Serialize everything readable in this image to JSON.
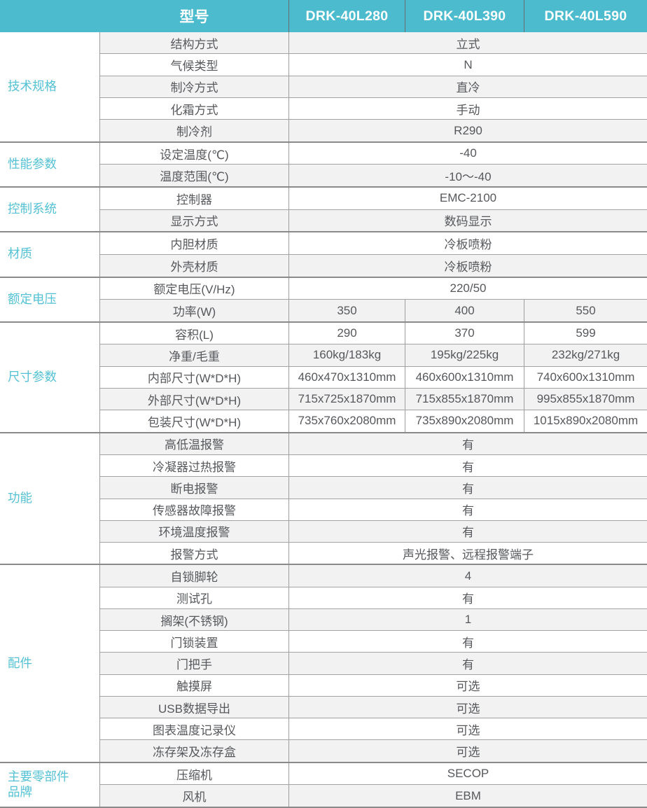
{
  "colors": {
    "header_bg": "#4cbbce",
    "header_text": "#ffffff",
    "category_text": "#55c1d4",
    "body_text": "#56585b",
    "stripe": "#f2f2f3",
    "row_line": "#a3a3a3",
    "section_line": "#8a8a8a",
    "col_line": "#9e9e9e",
    "header_divider": "#6a6e70"
  },
  "header": {
    "model_label": "型号",
    "models": [
      "DRK-40L280",
      "DRK-40L390",
      "DRK-40L590"
    ]
  },
  "sections": [
    {
      "category": "技术规格",
      "rows": [
        {
          "param": "结构方式",
          "value": "立式"
        },
        {
          "param": "气候类型",
          "value": "N"
        },
        {
          "param": "制冷方式",
          "value": "直冷"
        },
        {
          "param": "化霜方式",
          "value": "手动"
        },
        {
          "param": "制冷剂",
          "value": "R290"
        }
      ]
    },
    {
      "category": "性能参数",
      "rows": [
        {
          "param": "设定温度(℃)",
          "value": "-40"
        },
        {
          "param": "温度范围(℃)",
          "value": "-10～-40"
        }
      ]
    },
    {
      "category": "控制系统",
      "rows": [
        {
          "param": "控制器",
          "value": "EMC-2100"
        },
        {
          "param": "显示方式",
          "value": "数码显示"
        }
      ]
    },
    {
      "category": "材质",
      "rows": [
        {
          "param": "内胆材质",
          "value": "冷板喷粉"
        },
        {
          "param": "外壳材质",
          "value": "冷板喷粉"
        }
      ]
    },
    {
      "category": "额定电压",
      "rows": [
        {
          "param": "额定电压(V/Hz)",
          "value": "220/50"
        },
        {
          "param": "功率(W)",
          "values": [
            "350",
            "400",
            "550"
          ]
        }
      ]
    },
    {
      "category": "尺寸参数",
      "rows": [
        {
          "param": "容积(L)",
          "values": [
            "290",
            "370",
            "599"
          ]
        },
        {
          "param": "净重/毛重",
          "values": [
            "160kg/183kg",
            "195kg/225kg",
            "232kg/271kg"
          ]
        },
        {
          "param": "内部尺寸(W*D*H)",
          "values": [
            "460x470x1310mm",
            "460x600x1310mm",
            "740x600x1310mm"
          ]
        },
        {
          "param": "外部尺寸(W*D*H)",
          "values": [
            "715x725x1870mm",
            "715x855x1870mm",
            "995x855x1870mm"
          ]
        },
        {
          "param": "包装尺寸(W*D*H)",
          "values": [
            "735x760x2080mm",
            "735x890x2080mm",
            "1015x890x2080mm"
          ]
        }
      ]
    },
    {
      "category": "功能",
      "rows": [
        {
          "param": "高低温报警",
          "value": "有"
        },
        {
          "param": "冷凝器过热报警",
          "value": "有"
        },
        {
          "param": "断电报警",
          "value": "有"
        },
        {
          "param": "传感器故障报警",
          "value": "有"
        },
        {
          "param": "环境温度报警",
          "value": "有"
        },
        {
          "param": "报警方式",
          "value": "声光报警、远程报警端子"
        }
      ]
    },
    {
      "category": "配件",
      "rows": [
        {
          "param": "自锁脚轮",
          "value": "4"
        },
        {
          "param": "测试孔",
          "value": "有"
        },
        {
          "param": "搁架(不锈钢)",
          "value": "1"
        },
        {
          "param": "门锁装置",
          "value": "有"
        },
        {
          "param": "门把手",
          "value": "有"
        },
        {
          "param": "触摸屏",
          "value": "可选"
        },
        {
          "param": "USB数据导出",
          "value": "可选"
        },
        {
          "param": "图表温度记录仪",
          "value": "可选"
        },
        {
          "param": "冻存架及冻存盒",
          "value": "可选"
        }
      ]
    },
    {
      "category": "主要零部件\n品牌",
      "rows": [
        {
          "param": "压缩机",
          "value": "SECOP"
        },
        {
          "param": "风机",
          "value": "EBM"
        }
      ]
    }
  ]
}
